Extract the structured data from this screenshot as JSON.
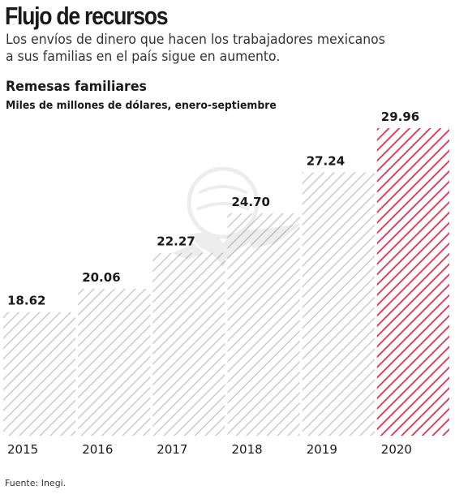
{
  "header": {
    "title": "Flujo de recursos",
    "deck": "Los envíos de dinero que hacen los trabajadores mexicanos a sus familias en el país sigue en aumento."
  },
  "chart_data": {
    "type": "bar",
    "title": "Remesas familiares",
    "subtitle": "Miles de millones de dólares, enero-septiembre",
    "categories": [
      "2015",
      "2016",
      "2017",
      "2018",
      "2019",
      "2020"
    ],
    "values": [
      18.62,
      20.06,
      22.27,
      24.7,
      27.24,
      29.96
    ],
    "value_labels": [
      "18.62",
      "20.06",
      "22.27",
      "24.70",
      "27.24",
      "29.96"
    ],
    "ylim": [
      0,
      29.96
    ],
    "grid": false,
    "colors": {
      "hatch_gray": "#bdbdbd",
      "hatch_highlight": "#e0304e",
      "highlight_category": "2020"
    }
  },
  "footer": {
    "source": "Fuente: Inegi."
  }
}
